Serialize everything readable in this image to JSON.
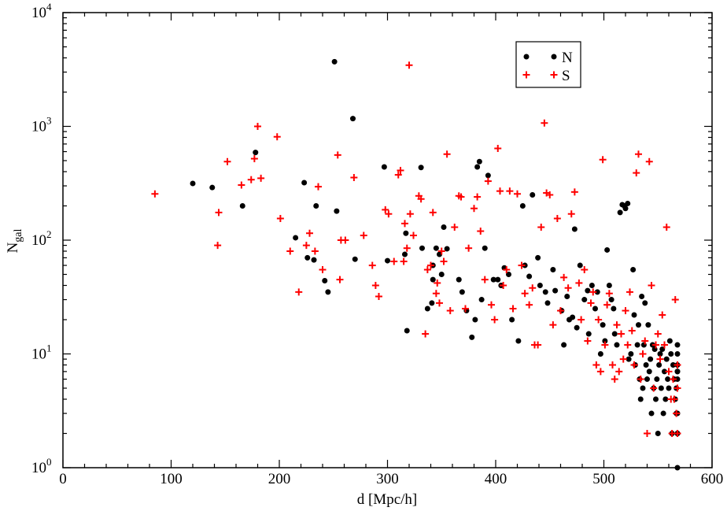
{
  "chart_data": {
    "type": "scatter",
    "xlabel": "d [Mpc/h]",
    "ylabel_main": "N",
    "ylabel_sub": "gal",
    "xlim": [
      0,
      600
    ],
    "ylim": [
      1,
      10000
    ],
    "y_scale": "log",
    "x_ticks": [
      "0",
      "100",
      "200",
      "300",
      "400",
      "500",
      "600"
    ],
    "y_tick_base": "10",
    "y_tick_exponents": [
      "0",
      "1",
      "2",
      "3",
      "4"
    ],
    "grid": false,
    "legend_position": "top-right",
    "colors": {
      "N": "#000000",
      "S": "#ff0000"
    },
    "series": [
      {
        "name": "N",
        "marker": "circle",
        "x": [
          120,
          138,
          166,
          178,
          215,
          223,
          226,
          232,
          234,
          242,
          245,
          251,
          253,
          268,
          270,
          297,
          300,
          316,
          317,
          318,
          331,
          332,
          337,
          341,
          342,
          342,
          345,
          348,
          350,
          352,
          355,
          366,
          369,
          373,
          378,
          381,
          383,
          385,
          387,
          390,
          393,
          398,
          402,
          405,
          408,
          412,
          415,
          421,
          425,
          427,
          431,
          434,
          439,
          441,
          446,
          448,
          453,
          455,
          461,
          463,
          466,
          468,
          471,
          473,
          475,
          478,
          482,
          485,
          486,
          489,
          492,
          494,
          497,
          499,
          501,
          503,
          505,
          507,
          509,
          510,
          512,
          515,
          517,
          519,
          520,
          522,
          523,
          525,
          527,
          528,
          529,
          531,
          532,
          533,
          534,
          535,
          536,
          537,
          538,
          539,
          540,
          541,
          542,
          543,
          544,
          545,
          546,
          547,
          548,
          549,
          550,
          551,
          552,
          553,
          554,
          555,
          556,
          557,
          558,
          559,
          560,
          561,
          562,
          563,
          564,
          565,
          566,
          567,
          567,
          568,
          568,
          568,
          568,
          568,
          568,
          568,
          568,
          568,
          568
        ],
        "y": [
          315,
          290,
          200,
          590,
          105,
          320,
          70,
          67,
          200,
          44,
          35,
          3700,
          180,
          1170,
          68,
          440,
          66,
          75,
          115,
          16,
          435,
          85,
          25,
          28,
          60,
          45,
          85,
          75,
          50,
          130,
          84,
          45,
          35,
          24,
          14,
          20,
          440,
          490,
          30,
          85,
          370,
          45,
          45,
          40,
          57,
          50,
          20,
          13,
          200,
          60,
          48,
          250,
          70,
          40,
          35,
          28,
          55,
          36,
          24,
          12,
          32,
          20,
          21,
          125,
          17,
          60,
          30,
          36,
          15,
          40,
          25,
          35,
          10,
          18,
          13,
          82,
          40,
          30,
          25,
          15,
          12,
          175,
          205,
          200,
          190,
          210,
          9,
          10,
          55,
          22,
          8,
          12,
          18,
          6,
          4,
          32,
          5,
          12,
          28,
          8,
          6,
          18,
          7,
          9,
          3,
          12,
          5,
          11,
          4,
          6,
          2,
          8,
          10,
          5,
          11,
          3,
          7,
          4,
          9,
          6,
          5,
          13,
          10,
          2,
          8,
          6,
          4,
          5,
          3,
          2,
          7,
          8,
          2,
          1,
          3,
          6,
          7,
          10,
          12
        ]
      },
      {
        "name": "S",
        "marker": "plus",
        "x": [
          85,
          143,
          144,
          152,
          165,
          174,
          177,
          180,
          183,
          198,
          201,
          210,
          218,
          225,
          228,
          233,
          236,
          240,
          254,
          256,
          257,
          261,
          269,
          278,
          286,
          289,
          292,
          298,
          301,
          306,
          310,
          312,
          315,
          316,
          318,
          320,
          321,
          324,
          329,
          331,
          335,
          337,
          340,
          342,
          345,
          346,
          348,
          350,
          352,
          355,
          358,
          362,
          366,
          368,
          372,
          375,
          380,
          383,
          386,
          390,
          393,
          396,
          399,
          402,
          404,
          407,
          410,
          413,
          416,
          420,
          424,
          427,
          431,
          434,
          436,
          439,
          442,
          445,
          447,
          450,
          453,
          457,
          460,
          463,
          467,
          470,
          473,
          477,
          479,
          482,
          485,
          488,
          490,
          493,
          495,
          497,
          499,
          501,
          503,
          505,
          508,
          510,
          512,
          514,
          516,
          518,
          520,
          522,
          524,
          526,
          528,
          530,
          532,
          534,
          536,
          538,
          540,
          542,
          544,
          546,
          548,
          550,
          552,
          554,
          556,
          558,
          560,
          562,
          563,
          564,
          565,
          566,
          567,
          568,
          568,
          568
        ],
        "y": [
          255,
          90,
          175,
          490,
          305,
          340,
          520,
          1000,
          350,
          810,
          155,
          80,
          35,
          90,
          115,
          80,
          295,
          55,
          560,
          45,
          100,
          100,
          355,
          110,
          60,
          40,
          32,
          185,
          170,
          65,
          375,
          410,
          65,
          140,
          85,
          3450,
          170,
          110,
          245,
          230,
          15,
          55,
          60,
          175,
          34,
          42,
          28,
          80,
          65,
          570,
          24,
          130,
          245,
          240,
          25,
          85,
          190,
          240,
          120,
          45,
          330,
          27,
          20,
          640,
          270,
          40,
          55,
          270,
          25,
          255,
          60,
          34,
          27,
          38,
          12,
          12,
          130,
          1070,
          260,
          250,
          18,
          155,
          24,
          47,
          38,
          170,
          265,
          42,
          20,
          55,
          13,
          28,
          35,
          8,
          20,
          7,
          510,
          12,
          27,
          34,
          8,
          6,
          18,
          7,
          15,
          9,
          24,
          12,
          35,
          16,
          8,
          390,
          570,
          6,
          10,
          13,
          2,
          490,
          40,
          5,
          12,
          15,
          9,
          22,
          12,
          130,
          7,
          4,
          2,
          6,
          4,
          30,
          3,
          5,
          8,
          2
        ]
      }
    ]
  }
}
